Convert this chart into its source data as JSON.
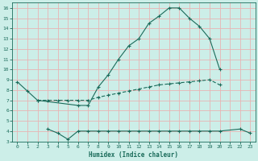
{
  "xlabel": "Humidex (Indice chaleur)",
  "bg_color": "#cceee8",
  "line_color": "#1a6b5a",
  "grid_color": "#e8b4b4",
  "xlim": [
    -0.5,
    23.5
  ],
  "ylim": [
    3,
    16.5
  ],
  "yticks": [
    3,
    4,
    5,
    6,
    7,
    8,
    9,
    10,
    11,
    12,
    13,
    14,
    15,
    16
  ],
  "xticks": [
    0,
    1,
    2,
    3,
    4,
    5,
    6,
    7,
    8,
    9,
    10,
    11,
    12,
    13,
    14,
    15,
    16,
    17,
    18,
    19,
    20,
    21,
    22,
    23
  ],
  "line1_x": [
    0,
    1,
    2,
    6,
    7,
    8,
    9,
    10,
    11,
    12,
    13,
    14,
    15,
    16,
    17,
    18,
    19,
    20
  ],
  "line1_y": [
    8.8,
    7.9,
    7.0,
    6.5,
    6.5,
    8.3,
    9.5,
    11.0,
    12.3,
    13.0,
    14.5,
    15.2,
    16.0,
    16.0,
    15.0,
    14.2,
    13.0,
    10.0
  ],
  "line2_x": [
    2,
    3,
    4,
    5,
    6,
    7,
    8,
    9,
    10,
    11,
    12,
    13,
    14,
    15,
    16,
    17,
    18,
    19,
    20
  ],
  "line2_y": [
    7.0,
    7.0,
    7.0,
    7.0,
    7.0,
    7.0,
    7.3,
    7.5,
    7.7,
    7.9,
    8.1,
    8.3,
    8.5,
    8.6,
    8.7,
    8.8,
    8.9,
    9.0,
    8.5
  ],
  "line3_x": [
    3,
    4,
    5,
    6,
    7,
    8,
    9,
    10,
    11,
    12,
    13,
    14,
    15,
    16,
    17,
    18,
    19,
    20,
    22,
    23
  ],
  "line3_y": [
    4.2,
    3.8,
    3.2,
    4.0,
    4.0,
    4.0,
    4.0,
    4.0,
    4.0,
    4.0,
    4.0,
    4.0,
    4.0,
    4.0,
    4.0,
    4.0,
    4.0,
    4.0,
    4.2,
    3.8
  ]
}
